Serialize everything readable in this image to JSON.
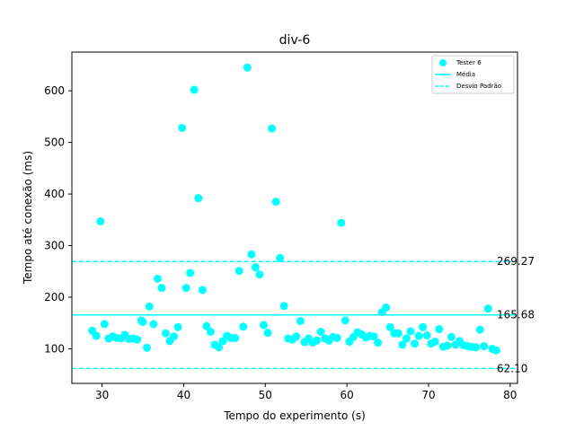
{
  "chart_data": {
    "type": "scatter",
    "title": "div-6",
    "xlabel": "Tempo do experimento (s)",
    "ylabel": "Tempo até conexão (ms)",
    "xlim": [
      26.3,
      80.9
    ],
    "ylim": [
      33,
      675
    ],
    "xticks": [
      30,
      40,
      50,
      60,
      70,
      80
    ],
    "yticks": [
      100,
      200,
      300,
      400,
      500,
      600
    ],
    "grid": false,
    "legend_position": "top-right",
    "colors": {
      "series": "#00ffff",
      "axis": "#000000"
    },
    "series": [
      {
        "name": "Tester 6",
        "x": [
          28.8,
          29.3,
          29.8,
          30.3,
          30.8,
          31.3,
          31.8,
          32.3,
          32.8,
          33.3,
          33.8,
          34.3,
          34.8,
          35.0,
          35.5,
          35.8,
          36.3,
          36.8,
          37.3,
          37.8,
          38.3,
          38.8,
          39.3,
          39.8,
          40.3,
          40.8,
          41.3,
          41.8,
          42.3,
          42.8,
          43.3,
          43.8,
          44.3,
          44.8,
          45.3,
          45.8,
          46.3,
          46.8,
          47.3,
          47.8,
          48.3,
          48.8,
          49.3,
          49.8,
          50.3,
          50.8,
          51.3,
          51.8,
          52.3,
          52.8,
          53.3,
          53.8,
          54.3,
          54.8,
          55.3,
          55.8,
          56.3,
          56.8,
          57.3,
          57.8,
          58.3,
          58.8,
          59.3,
          59.8,
          60.3,
          60.8,
          61.3,
          61.8,
          62.3,
          62.8,
          63.3,
          63.8,
          64.3,
          64.8,
          65.3,
          65.8,
          66.3,
          66.8,
          67.3,
          67.8,
          68.3,
          68.8,
          69.3,
          69.8,
          70.3,
          70.8,
          71.3,
          71.8,
          72.3,
          72.8,
          73.3,
          73.8,
          74.3,
          74.8,
          75.3,
          75.8,
          76.3,
          76.8,
          77.3,
          77.8,
          78.3
        ],
        "y": [
          135,
          125,
          347,
          148,
          120,
          124,
          121,
          120,
          127,
          119,
          120,
          118,
          155,
          152,
          102,
          182,
          148,
          236,
          218,
          130,
          115,
          124,
          142,
          528,
          218,
          247,
          602,
          392,
          214,
          144,
          133,
          108,
          103,
          115,
          125,
          121,
          121,
          251,
          143,
          645,
          283,
          258,
          244,
          146,
          131,
          527,
          385,
          276,
          183,
          120,
          118,
          124,
          154,
          113,
          120,
          112,
          116,
          133,
          120,
          116,
          123,
          121,
          344,
          155,
          114,
          123,
          132,
          128,
          122,
          125,
          124,
          112,
          171,
          180,
          142,
          130,
          130,
          108,
          120,
          134,
          110,
          125,
          142,
          126,
          110,
          114,
          138,
          104,
          106,
          123,
          108,
          115,
          107,
          105,
          104,
          103,
          137,
          105,
          178,
          100,
          97
        ]
      },
      {
        "name": "Média",
        "value": 165.68,
        "label": "165.68"
      },
      {
        "name": "Desvio Padrão",
        "values": [
          269.27,
          62.1
        ],
        "labels": [
          "269.27",
          "62.10"
        ]
      }
    ]
  }
}
